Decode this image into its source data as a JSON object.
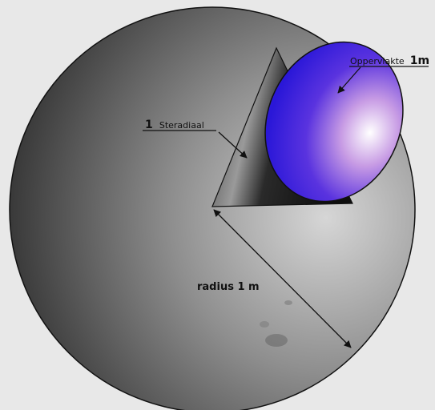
{
  "labels": {
    "surface_word": "Oppervlakte",
    "surface_value": "1m",
    "steradian_number": "1",
    "steradian_word": "Steradiaal",
    "radius": "radius 1 m"
  },
  "colors": {
    "background": "#e8e8e8",
    "sphere_dark": "#2a2a2a",
    "sphere_light": "#d6d6d6",
    "cap_blue": "#2a17d8",
    "cap_highlight": "#ffffff",
    "outline": "#111111"
  }
}
